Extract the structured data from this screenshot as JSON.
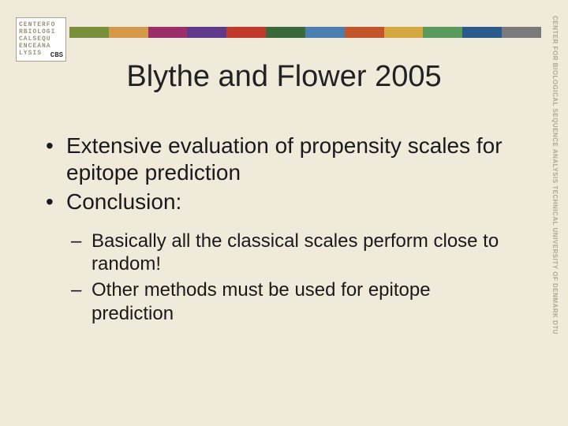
{
  "background_color": "#efeada",
  "logo": {
    "lines": [
      "CENTERFO",
      "RBIOLOGI",
      "CALSEQU",
      "ENCEANA",
      "LYSIS"
    ],
    "badge": "CBS"
  },
  "stripe_colors": [
    "#7a8f3a",
    "#d49a4a",
    "#9b2f6a",
    "#5f3a8a",
    "#c23a2a",
    "#3a6a3a",
    "#4a7fb0",
    "#c2562a",
    "#d4a840",
    "#5a9a5a",
    "#2a5a8a",
    "#7a7a7a"
  ],
  "title": "Blythe and Flower 2005",
  "bullets": [
    "Extensive evaluation of propensity scales for epitope prediction",
    " Conclusion:"
  ],
  "sub_bullets": [
    "Basically all the classical scales perform close to random!",
    "Other methods must be used for epitope prediction"
  ],
  "vertical_text": "CENTER FOR BIOLOGICAL SEQUENCE ANALYSIS TECHNICAL UNIVERSITY OF DENMARK DTU"
}
